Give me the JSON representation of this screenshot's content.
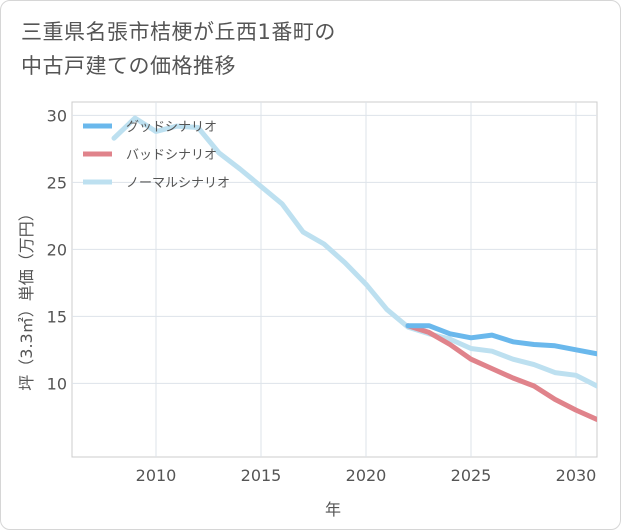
{
  "title_lines": [
    "三重県名張市桔梗が丘西1番町の",
    "中古戸建ての価格推移"
  ],
  "chart_data": {
    "type": "line",
    "xlabel": "年",
    "ylabel": "坪（3.3㎡）単価（万円）",
    "xlim": [
      2006,
      2031
    ],
    "ylim": [
      4.5,
      31
    ],
    "xticks": [
      2010,
      2015,
      2020,
      2025,
      2030
    ],
    "yticks": [
      10,
      15,
      20,
      25,
      30
    ],
    "grid": true,
    "legend_position": "top-left",
    "series": [
      {
        "name": "グッドシナリオ",
        "color": "#6ab8ec",
        "x": [
          2022,
          2023,
          2024,
          2025,
          2026,
          2027,
          2028,
          2029,
          2030,
          2031
        ],
        "y": [
          14.3,
          14.3,
          13.7,
          13.4,
          13.6,
          13.1,
          12.9,
          12.8,
          12.5,
          12.2
        ]
      },
      {
        "name": "バッドシナリオ",
        "color": "#e0838b",
        "x": [
          2022,
          2023,
          2024,
          2025,
          2026,
          2027,
          2028,
          2029,
          2030,
          2031
        ],
        "y": [
          14.3,
          13.8,
          12.9,
          11.8,
          11.1,
          10.4,
          9.8,
          8.8,
          8.0,
          7.3
        ]
      },
      {
        "name": "ノーマルシナリオ",
        "color": "#bde0f0",
        "x": [
          2008,
          2009,
          2010,
          2011,
          2012,
          2013,
          2014,
          2015,
          2016,
          2017,
          2018,
          2019,
          2020,
          2021,
          2022,
          2023,
          2024,
          2025,
          2026,
          2027,
          2028,
          2029,
          2030,
          2031
        ],
        "y": [
          28.3,
          29.8,
          28.8,
          29.2,
          29.1,
          27.2,
          26.0,
          24.7,
          23.4,
          21.3,
          20.4,
          19.0,
          17.4,
          15.5,
          14.2,
          13.7,
          13.3,
          12.6,
          12.4,
          11.8,
          11.4,
          10.8,
          10.6,
          9.8
        ]
      }
    ]
  }
}
